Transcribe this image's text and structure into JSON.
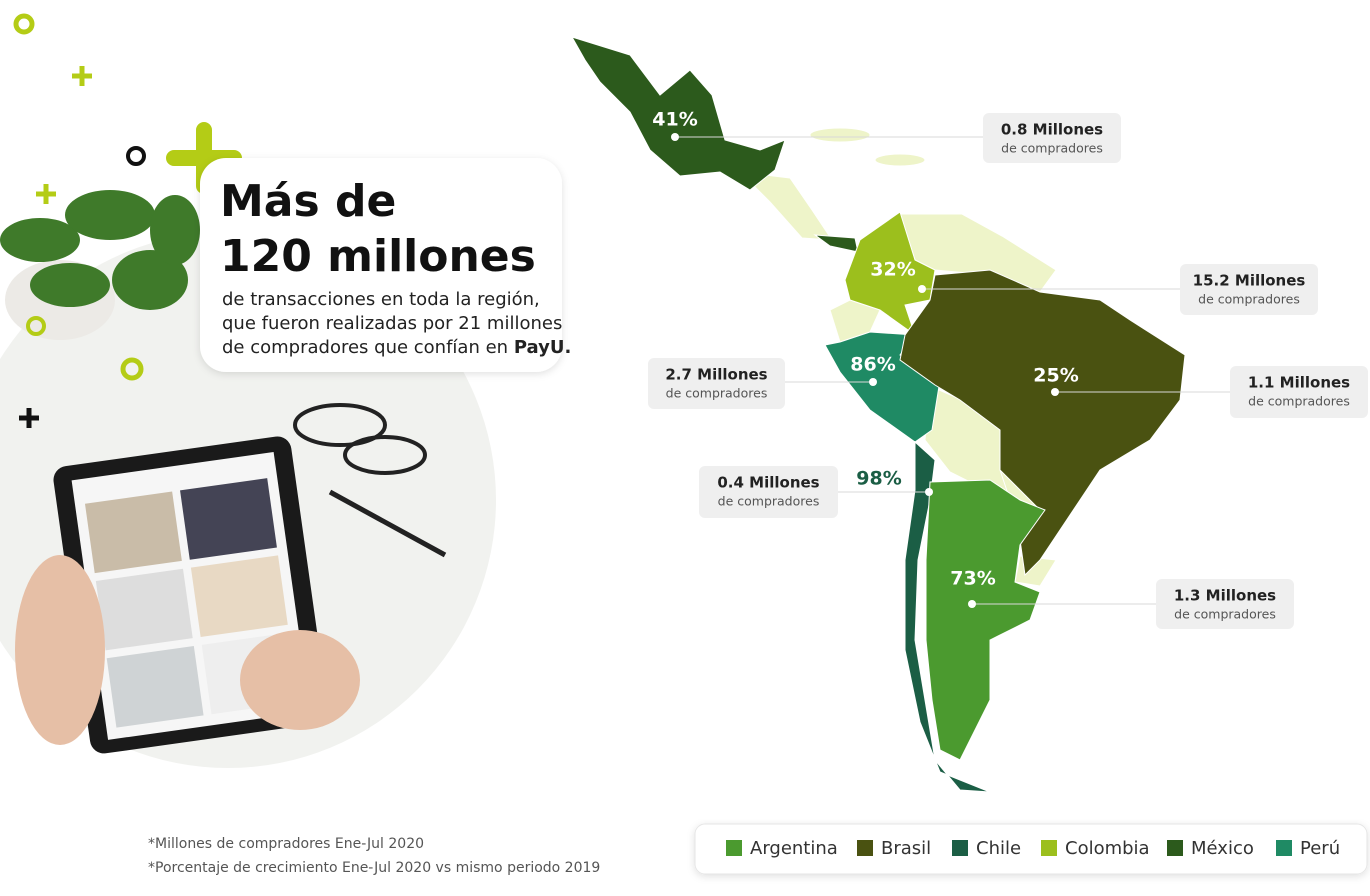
{
  "headline": {
    "title_lines": [
      "Más de",
      "120 millones"
    ],
    "body_lines": [
      "de transacciones en toda la región,",
      "que fueron realizadas por 21 millones",
      "de compradores que confían en"
    ],
    "brand": "PayU."
  },
  "countries": [
    {
      "name": "Argentina",
      "color": "#4b9a2f",
      "growth": "73%",
      "buyers": "1.3 Millones",
      "buyers_note": "de compradores"
    },
    {
      "name": "Brasil",
      "color": "#4a5211",
      "growth": "25%",
      "buyers": "1.1 Millones",
      "buyers_note": "de compradores"
    },
    {
      "name": "Chile",
      "color": "#1b5e45",
      "growth": "98%",
      "buyers": "0.4 Millones",
      "buyers_note": "de compradores"
    },
    {
      "name": "Colombia",
      "color": "#9cbf1d",
      "growth": "32%",
      "buyers": "15.2 Millones",
      "buyers_note": "de compradores"
    },
    {
      "name": "México",
      "color": "#2c5a1c",
      "growth": "41%",
      "buyers": "0.8 Millones",
      "buyers_note": "de compradores"
    },
    {
      "name": "Perú",
      "color": "#1f8a64",
      "growth": "86%",
      "buyers": "2.7 Millones",
      "buyers_note": "de compradores"
    }
  ],
  "footnotes": [
    "*Millones de compradores Ene-Jul 2020",
    "*Porcentaje de crecimiento Ene-Jul 2020 vs mismo periodo 2019"
  ]
}
